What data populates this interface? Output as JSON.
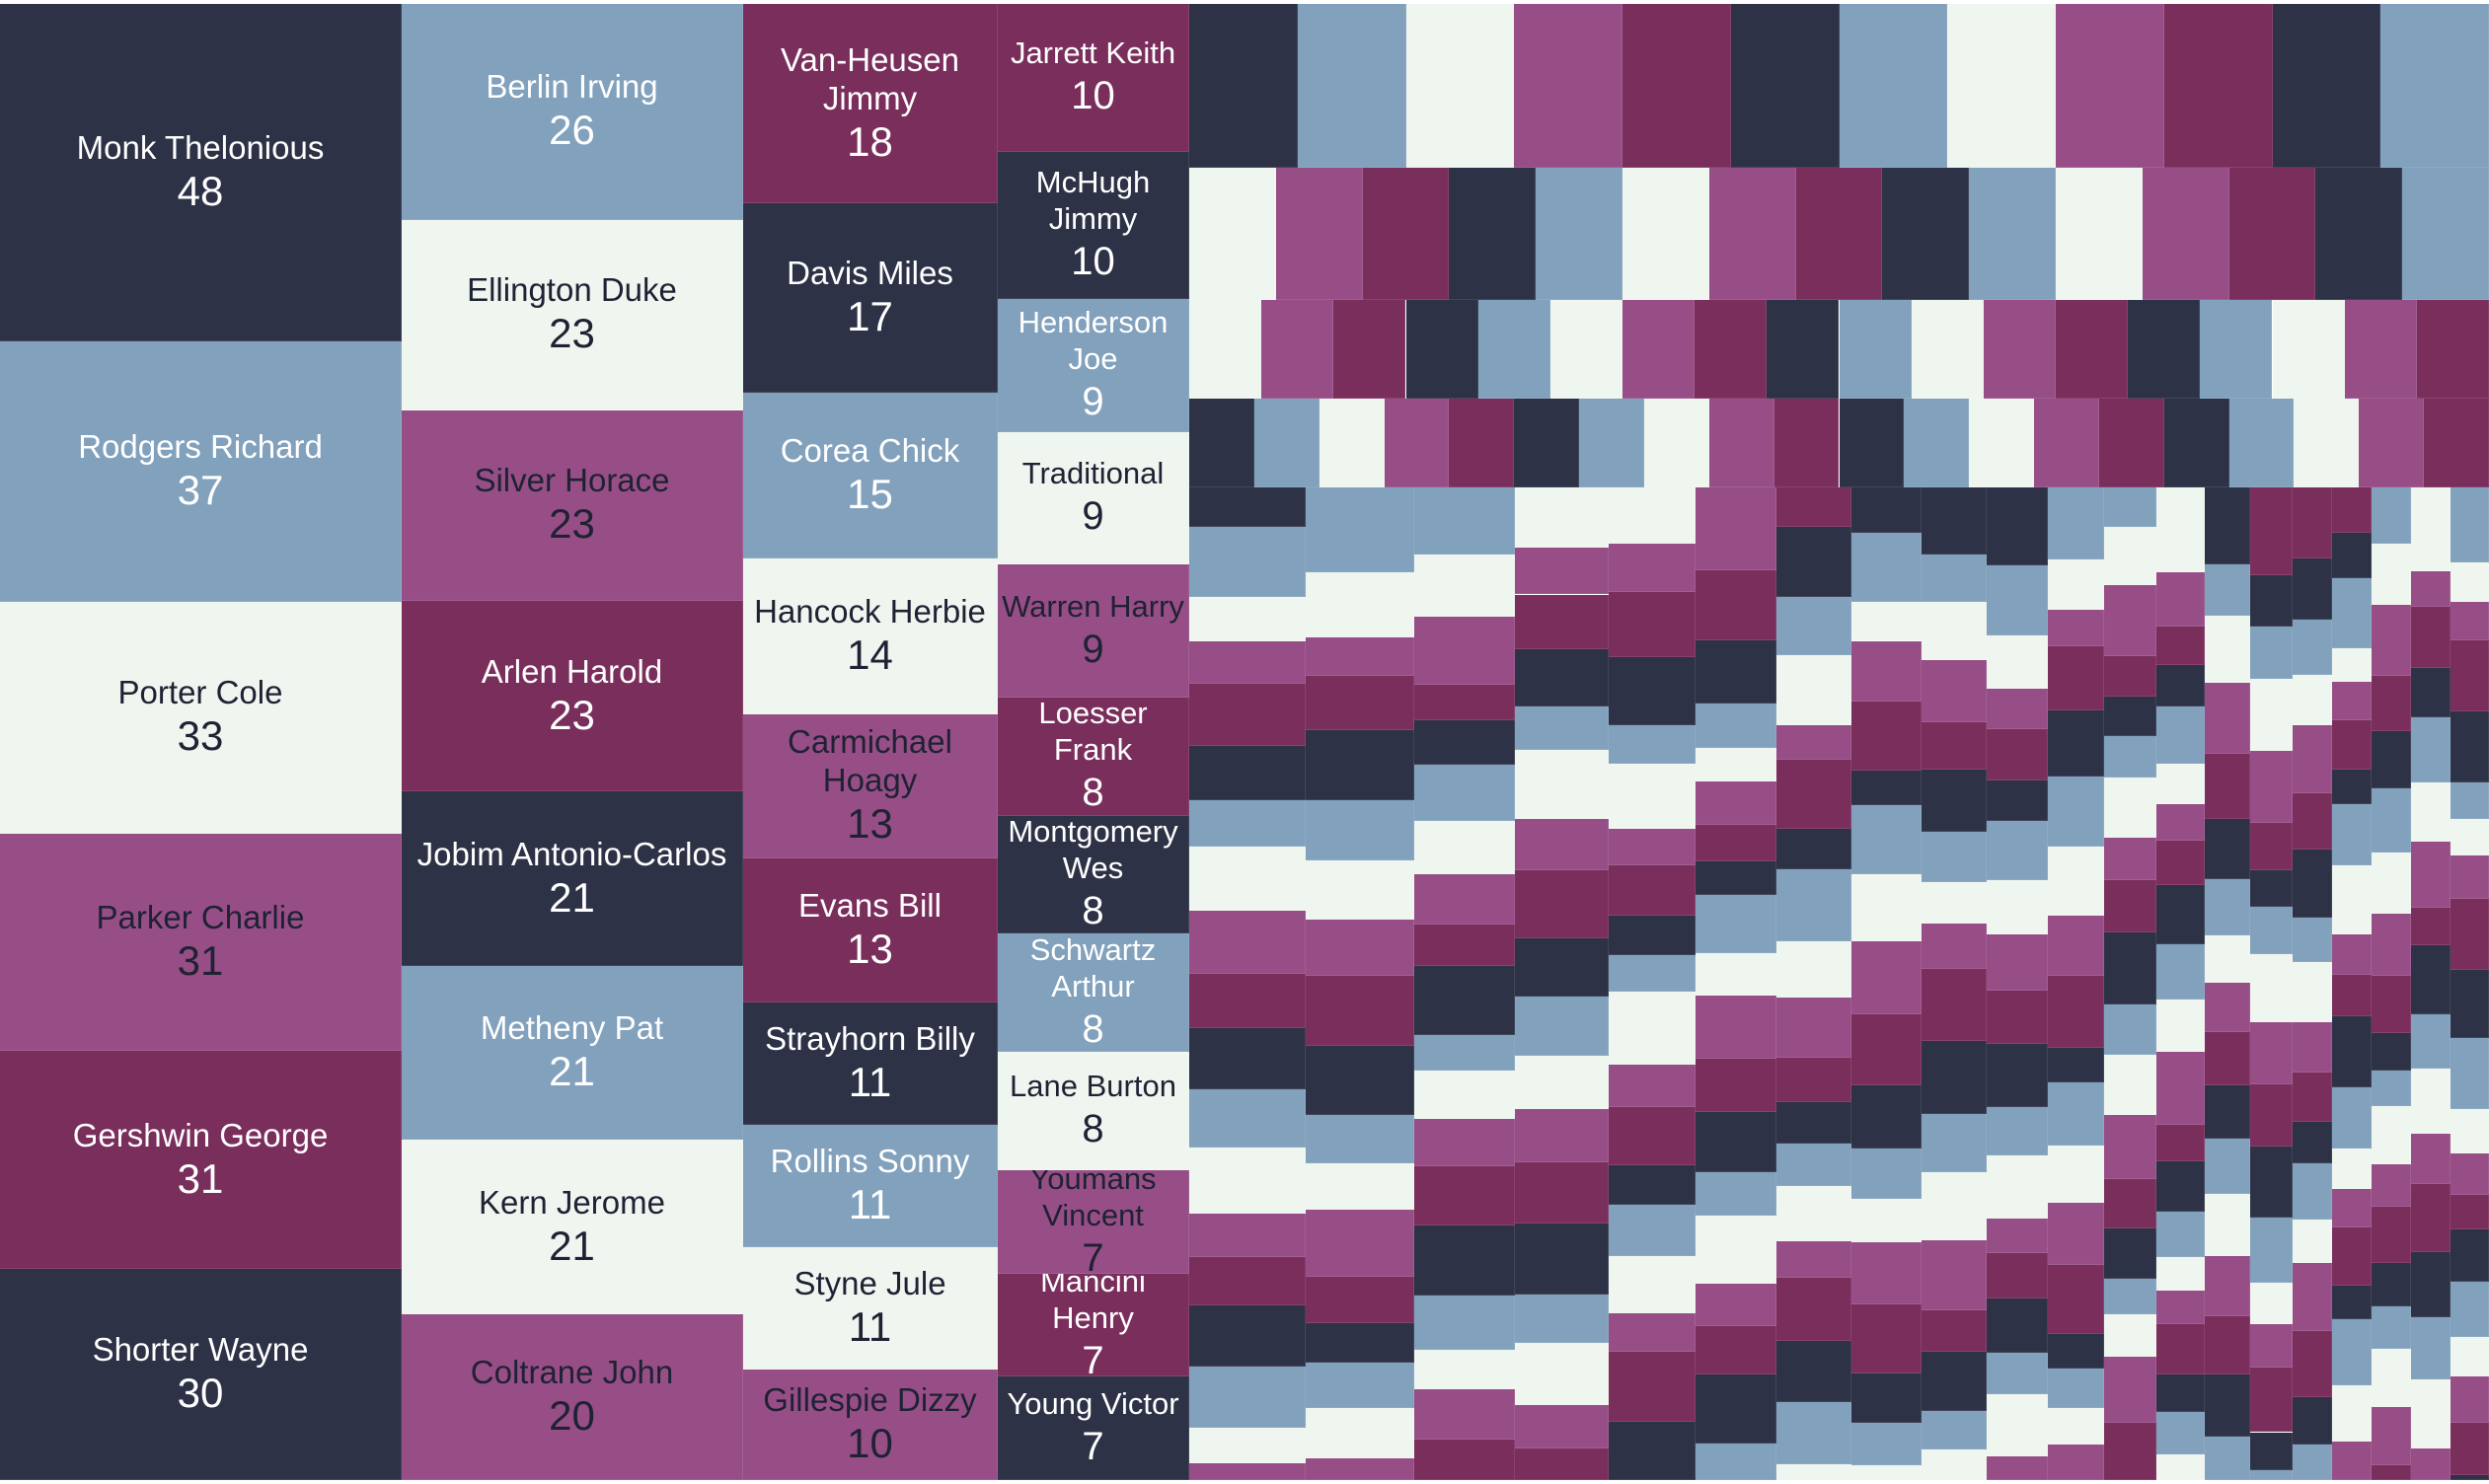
{
  "colors": [
    "#2d3246",
    "#7a2e5c",
    "#974e86",
    "#82a1bc",
    "#eff5ef"
  ],
  "chart_data": {
    "type": "treemap",
    "title": "",
    "labeled_nodes": [
      {
        "name": "Monk Thelonious",
        "value": 48,
        "color": 0
      },
      {
        "name": "Rodgers Richard",
        "value": 37,
        "color": 3
      },
      {
        "name": "Porter Cole",
        "value": 33,
        "color": 4
      },
      {
        "name": "Parker Charlie",
        "value": 31,
        "color": 2
      },
      {
        "name": "Gershwin George",
        "value": 31,
        "color": 1
      },
      {
        "name": "Shorter Wayne",
        "value": 30,
        "color": 0
      },
      {
        "name": "Berlin Irving",
        "value": 26,
        "color": 3
      },
      {
        "name": "Ellington Duke",
        "value": 23,
        "color": 4
      },
      {
        "name": "Silver Horace",
        "value": 23,
        "color": 2
      },
      {
        "name": "Arlen Harold",
        "value": 23,
        "color": 1
      },
      {
        "name": "Jobim Antonio-Carlos",
        "value": 21,
        "color": 0
      },
      {
        "name": "Metheny Pat",
        "value": 21,
        "color": 3
      },
      {
        "name": "Kern Jerome",
        "value": 21,
        "color": 4
      },
      {
        "name": "Coltrane John",
        "value": 20,
        "color": 2
      },
      {
        "name": "Van-Heusen Jimmy",
        "value": 18,
        "color": 1
      },
      {
        "name": "Davis Miles",
        "value": 17,
        "color": 0
      },
      {
        "name": "Corea Chick",
        "value": 15,
        "color": 3
      },
      {
        "name": "Hancock Herbie",
        "value": 14,
        "color": 4
      },
      {
        "name": "Carmichael Hoagy",
        "value": 13,
        "color": 2
      },
      {
        "name": "Evans Bill",
        "value": 13,
        "color": 1
      },
      {
        "name": "Strayhorn Billy",
        "value": 11,
        "color": 0
      },
      {
        "name": "Rollins Sonny",
        "value": 11,
        "color": 3
      },
      {
        "name": "Styne Jule",
        "value": 11,
        "color": 4
      },
      {
        "name": "Gillespie Dizzy",
        "value": 10,
        "color": 2
      },
      {
        "name": "Jarrett Keith",
        "value": 10,
        "color": 1
      },
      {
        "name": "McHugh Jimmy",
        "value": 10,
        "color": 0
      },
      {
        "name": "Henderson Joe",
        "value": 9,
        "color": 3
      },
      {
        "name": "Traditional",
        "value": 9,
        "color": 4
      },
      {
        "name": "Warren Harry",
        "value": 9,
        "color": 2
      },
      {
        "name": "Loesser Frank",
        "value": 8,
        "color": 1
      },
      {
        "name": "Montgomery Wes",
        "value": 8,
        "color": 0
      },
      {
        "name": "Schwartz Arthur",
        "value": 8,
        "color": 3
      },
      {
        "name": "Lane Burton",
        "value": 8,
        "color": 4
      },
      {
        "name": "Youmans Vincent",
        "value": 7,
        "color": 2
      },
      {
        "name": "Mancini Henry",
        "value": 7,
        "color": 1
      },
      {
        "name": "Young Victor",
        "value": 7,
        "color": 0
      }
    ]
  }
}
